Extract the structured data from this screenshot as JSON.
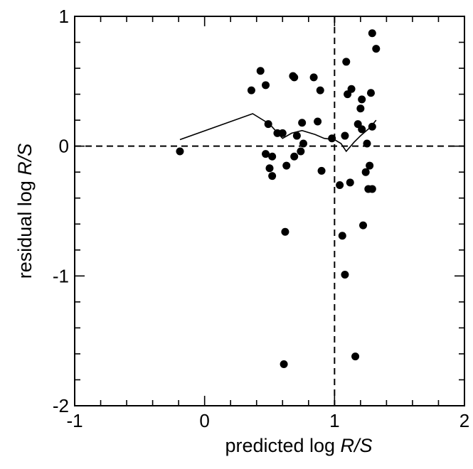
{
  "chart_data": {
    "type": "scatter",
    "title": "",
    "xlabel": {
      "prefix": "predicted log ",
      "var": "R/S"
    },
    "ylabel": {
      "prefix": "residual log ",
      "var": "R/S"
    },
    "xlim": [
      -1,
      2
    ],
    "ylim": [
      -2,
      1
    ],
    "x_ticks": [
      "-1",
      "0",
      "1",
      "2"
    ],
    "y_ticks": [
      "-2",
      "-1",
      "0",
      "1"
    ],
    "x_ref_line": 1,
    "y_ref_line": 0,
    "grid": false,
    "points": [
      [
        -0.19,
        -0.04
      ],
      [
        0.36,
        0.43
      ],
      [
        0.43,
        0.58
      ],
      [
        0.47,
        0.47
      ],
      [
        0.47,
        -0.06
      ],
      [
        0.49,
        0.17
      ],
      [
        0.5,
        -0.17
      ],
      [
        0.52,
        -0.08
      ],
      [
        0.52,
        -0.23
      ],
      [
        0.56,
        0.1
      ],
      [
        0.6,
        0.1
      ],
      [
        0.61,
        -1.68
      ],
      [
        0.62,
        -0.66
      ],
      [
        0.63,
        -0.15
      ],
      [
        0.68,
        0.54
      ],
      [
        0.69,
        0.53
      ],
      [
        0.69,
        -0.08
      ],
      [
        0.71,
        0.08
      ],
      [
        0.74,
        -0.04
      ],
      [
        0.75,
        0.18
      ],
      [
        0.76,
        0.02
      ],
      [
        0.84,
        0.53
      ],
      [
        0.87,
        0.19
      ],
      [
        0.89,
        0.43
      ],
      [
        0.9,
        -0.19
      ],
      [
        0.98,
        0.06
      ],
      [
        1.04,
        -0.3
      ],
      [
        1.06,
        -0.69
      ],
      [
        1.08,
        -0.99
      ],
      [
        1.08,
        0.08
      ],
      [
        1.09,
        0.65
      ],
      [
        1.1,
        0.4
      ],
      [
        1.12,
        -0.28
      ],
      [
        1.13,
        0.44
      ],
      [
        1.16,
        -1.62
      ],
      [
        1.18,
        0.17
      ],
      [
        1.2,
        0.29
      ],
      [
        1.21,
        0.36
      ],
      [
        1.21,
        0.13
      ],
      [
        1.22,
        -0.61
      ],
      [
        1.24,
        -0.2
      ],
      [
        1.25,
        0.02
      ],
      [
        1.26,
        -0.33
      ],
      [
        1.27,
        -0.15
      ],
      [
        1.28,
        0.41
      ],
      [
        1.29,
        0.15
      ],
      [
        1.29,
        -0.33
      ],
      [
        1.29,
        0.87
      ],
      [
        1.32,
        0.75
      ]
    ],
    "smooth_line": [
      [
        -0.19,
        0.05
      ],
      [
        0.37,
        0.25
      ],
      [
        0.5,
        0.17
      ],
      [
        0.6,
        0.06
      ],
      [
        0.67,
        0.1
      ],
      [
        0.75,
        0.12
      ],
      [
        0.85,
        0.09
      ],
      [
        0.92,
        0.06
      ],
      [
        1.0,
        0.05
      ],
      [
        1.05,
        0.02
      ],
      [
        1.09,
        -0.04
      ],
      [
        1.15,
        0.03
      ],
      [
        1.2,
        0.08
      ],
      [
        1.27,
        0.14
      ],
      [
        1.32,
        0.2
      ]
    ]
  }
}
